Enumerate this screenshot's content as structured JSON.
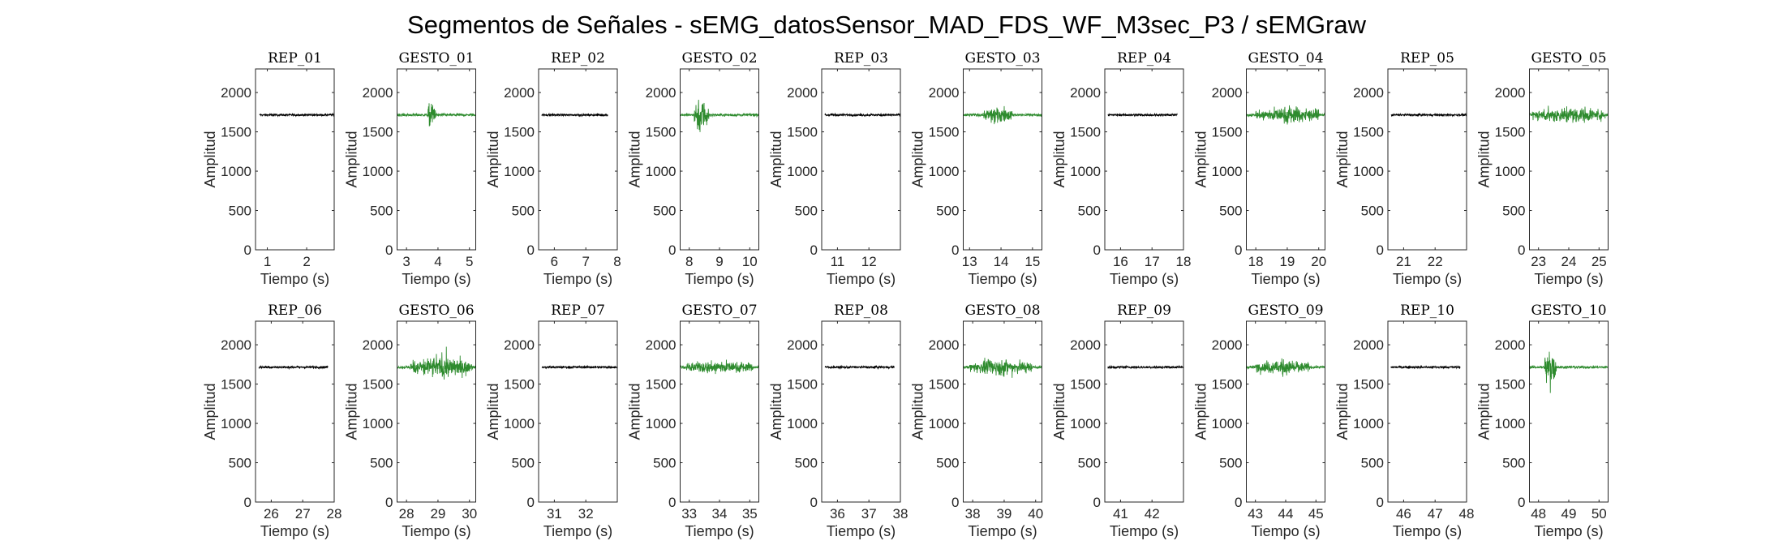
{
  "figure_title": "Segmentos de Señales - sEMG_datosSensor_MAD_FDS_WF_M3sec_P3 / sEMGraw",
  "colors": {
    "rep": "#000000",
    "gesto": "#2e8b2e",
    "axes": "#262626",
    "background": "#ffffff"
  },
  "chart_data": [
    {
      "type": "line",
      "title": "REP_01",
      "kind": "rep",
      "xlabel": "Tiempo (s)",
      "ylabel": "Amplitud",
      "xlim": [
        0.7,
        2.7
      ],
      "ylim": [
        0,
        2300
      ],
      "xticks": [
        1,
        2
      ],
      "yticks": [
        0,
        500,
        1000,
        1500,
        2000
      ],
      "series": [
        {
          "x_range": [
            0.8,
            2.7
          ],
          "baseline": 1715,
          "noise": 25,
          "bursts": []
        }
      ]
    },
    {
      "type": "line",
      "title": "GESTO_01",
      "kind": "gesto",
      "xlabel": "Tiempo (s)",
      "ylabel": "Amplitud",
      "xlim": [
        2.7,
        5.2
      ],
      "ylim": [
        0,
        2300
      ],
      "xticks": [
        3,
        4,
        5
      ],
      "yticks": [
        0,
        500,
        1000,
        1500,
        2000
      ],
      "series": [
        {
          "x_range": [
            2.7,
            5.2
          ],
          "baseline": 1715,
          "noise": 30,
          "bursts": [
            {
              "t": 3.8,
              "width": 0.25,
              "amp": 280
            }
          ]
        }
      ]
    },
    {
      "type": "line",
      "title": "REP_02",
      "kind": "rep",
      "xlabel": "Tiempo (s)",
      "ylabel": "Amplitud",
      "xlim": [
        5.5,
        8
      ],
      "ylim": [
        0,
        2300
      ],
      "xticks": [
        6,
        7,
        8
      ],
      "yticks": [
        0,
        500,
        1000,
        1500,
        2000
      ],
      "series": [
        {
          "x_range": [
            5.6,
            7.7
          ],
          "baseline": 1715,
          "noise": 25,
          "bursts": []
        }
      ]
    },
    {
      "type": "line",
      "title": "GESTO_02",
      "kind": "gesto",
      "xlabel": "Tiempo (s)",
      "ylabel": "Amplitud",
      "xlim": [
        7.7,
        10.3
      ],
      "ylim": [
        0,
        2300
      ],
      "xticks": [
        8,
        9,
        10
      ],
      "yticks": [
        0,
        500,
        1000,
        1500,
        2000
      ],
      "series": [
        {
          "x_range": [
            7.7,
            10.3
          ],
          "baseline": 1715,
          "noise": 30,
          "bursts": [
            {
              "t": 8.4,
              "width": 0.5,
              "amp": 380
            }
          ]
        }
      ]
    },
    {
      "type": "line",
      "title": "REP_03",
      "kind": "rep",
      "xlabel": "Tiempo (s)",
      "ylabel": "Amplitud",
      "xlim": [
        10.5,
        13
      ],
      "ylim": [
        0,
        2300
      ],
      "xticks": [
        11,
        12
      ],
      "yticks": [
        0,
        500,
        1000,
        1500,
        2000
      ],
      "series": [
        {
          "x_range": [
            10.6,
            13
          ],
          "baseline": 1715,
          "noise": 25,
          "bursts": []
        }
      ]
    },
    {
      "type": "line",
      "title": "GESTO_03",
      "kind": "gesto",
      "xlabel": "Tiempo (s)",
      "ylabel": "Amplitud",
      "xlim": [
        12.8,
        15.3
      ],
      "ylim": [
        0,
        2300
      ],
      "xticks": [
        13,
        14,
        15
      ],
      "yticks": [
        0,
        500,
        1000,
        1500,
        2000
      ],
      "series": [
        {
          "x_range": [
            12.8,
            15.3
          ],
          "baseline": 1715,
          "noise": 30,
          "bursts": [
            {
              "t": 13.9,
              "width": 0.9,
              "amp": 180
            }
          ]
        }
      ]
    },
    {
      "type": "line",
      "title": "REP_04",
      "kind": "rep",
      "xlabel": "Tiempo (s)",
      "ylabel": "Amplitud",
      "xlim": [
        15.5,
        18
      ],
      "ylim": [
        0,
        2300
      ],
      "xticks": [
        16,
        17,
        18
      ],
      "yticks": [
        0,
        500,
        1000,
        1500,
        2000
      ],
      "series": [
        {
          "x_range": [
            15.6,
            17.8
          ],
          "baseline": 1715,
          "noise": 25,
          "bursts": []
        }
      ]
    },
    {
      "type": "line",
      "title": "GESTO_04",
      "kind": "gesto",
      "xlabel": "Tiempo (s)",
      "ylabel": "Amplitud",
      "xlim": [
        17.7,
        20.2
      ],
      "ylim": [
        0,
        2300
      ],
      "xticks": [
        18,
        19,
        20
      ],
      "yticks": [
        0,
        500,
        1000,
        1500,
        2000
      ],
      "series": [
        {
          "x_range": [
            17.7,
            20.2
          ],
          "baseline": 1715,
          "noise": 30,
          "bursts": [
            {
              "t": 19,
              "width": 2,
              "amp": 170
            }
          ]
        }
      ]
    },
    {
      "type": "line",
      "title": "REP_05",
      "kind": "rep",
      "xlabel": "Tiempo (s)",
      "ylabel": "Amplitud",
      "xlim": [
        20.5,
        23
      ],
      "ylim": [
        0,
        2300
      ],
      "xticks": [
        21,
        22
      ],
      "yticks": [
        0,
        500,
        1000,
        1500,
        2000
      ],
      "series": [
        {
          "x_range": [
            20.6,
            23
          ],
          "baseline": 1715,
          "noise": 25,
          "bursts": []
        }
      ]
    },
    {
      "type": "line",
      "title": "GESTO_05",
      "kind": "gesto",
      "xlabel": "Tiempo (s)",
      "ylabel": "Amplitud",
      "xlim": [
        22.7,
        25.3
      ],
      "ylim": [
        0,
        2300
      ],
      "xticks": [
        23,
        24,
        25
      ],
      "yticks": [
        0,
        500,
        1000,
        1500,
        2000
      ],
      "series": [
        {
          "x_range": [
            22.7,
            25.3
          ],
          "baseline": 1715,
          "noise": 30,
          "bursts": [
            {
              "t": 24,
              "width": 2.4,
              "amp": 150
            }
          ]
        }
      ]
    },
    {
      "type": "line",
      "title": "REP_06",
      "kind": "rep",
      "xlabel": "Tiempo (s)",
      "ylabel": "Amplitud",
      "xlim": [
        25.5,
        28
      ],
      "ylim": [
        0,
        2300
      ],
      "xticks": [
        26,
        27,
        28
      ],
      "yticks": [
        0,
        500,
        1000,
        1500,
        2000
      ],
      "series": [
        {
          "x_range": [
            25.6,
            27.8
          ],
          "baseline": 1715,
          "noise": 25,
          "bursts": []
        }
      ]
    },
    {
      "type": "line",
      "title": "GESTO_06",
      "kind": "gesto",
      "xlabel": "Tiempo (s)",
      "ylabel": "Amplitud",
      "xlim": [
        27.7,
        30.2
      ],
      "ylim": [
        0,
        2300
      ],
      "xticks": [
        28,
        29,
        30
      ],
      "yticks": [
        0,
        500,
        1000,
        1500,
        2000
      ],
      "series": [
        {
          "x_range": [
            27.7,
            30.2
          ],
          "baseline": 1715,
          "noise": 30,
          "bursts": [
            {
              "t": 29.1,
              "width": 2,
              "amp": 230
            }
          ]
        }
      ]
    },
    {
      "type": "line",
      "title": "REP_07",
      "kind": "rep",
      "xlabel": "Tiempo (s)",
      "ylabel": "Amplitud",
      "xlim": [
        30.5,
        33
      ],
      "ylim": [
        0,
        2300
      ],
      "xticks": [
        31,
        32
      ],
      "yticks": [
        0,
        500,
        1000,
        1500,
        2000
      ],
      "series": [
        {
          "x_range": [
            30.6,
            33
          ],
          "baseline": 1715,
          "noise": 25,
          "bursts": []
        }
      ]
    },
    {
      "type": "line",
      "title": "GESTO_07",
      "kind": "gesto",
      "xlabel": "Tiempo (s)",
      "ylabel": "Amplitud",
      "xlim": [
        32.7,
        35.3
      ],
      "ylim": [
        0,
        2300
      ],
      "xticks": [
        33,
        34,
        35
      ],
      "yticks": [
        0,
        500,
        1000,
        1500,
        2000
      ],
      "series": [
        {
          "x_range": [
            32.7,
            35.3
          ],
          "baseline": 1715,
          "noise": 30,
          "bursts": [
            {
              "t": 34,
              "width": 2.2,
              "amp": 130
            }
          ]
        }
      ]
    },
    {
      "type": "line",
      "title": "REP_08",
      "kind": "rep",
      "xlabel": "Tiempo (s)",
      "ylabel": "Amplitud",
      "xlim": [
        35.5,
        38
      ],
      "ylim": [
        0,
        2300
      ],
      "xticks": [
        36,
        37,
        38
      ],
      "yticks": [
        0,
        500,
        1000,
        1500,
        2000
      ],
      "series": [
        {
          "x_range": [
            35.6,
            37.8
          ],
          "baseline": 1715,
          "noise": 25,
          "bursts": []
        }
      ]
    },
    {
      "type": "line",
      "title": "GESTO_08",
      "kind": "gesto",
      "xlabel": "Tiempo (s)",
      "ylabel": "Amplitud",
      "xlim": [
        37.7,
        40.2
      ],
      "ylim": [
        0,
        2300
      ],
      "xticks": [
        38,
        39,
        40
      ],
      "yticks": [
        0,
        500,
        1000,
        1500,
        2000
      ],
      "series": [
        {
          "x_range": [
            37.7,
            40.2
          ],
          "baseline": 1715,
          "noise": 30,
          "bursts": [
            {
              "t": 38.9,
              "width": 2,
              "amp": 170
            }
          ]
        }
      ]
    },
    {
      "type": "line",
      "title": "REP_09",
      "kind": "rep",
      "xlabel": "Tiempo (s)",
      "ylabel": "Amplitud",
      "xlim": [
        40.5,
        43
      ],
      "ylim": [
        0,
        2300
      ],
      "xticks": [
        41,
        42
      ],
      "yticks": [
        0,
        500,
        1000,
        1500,
        2000
      ],
      "series": [
        {
          "x_range": [
            40.6,
            43
          ],
          "baseline": 1715,
          "noise": 25,
          "bursts": []
        }
      ]
    },
    {
      "type": "line",
      "title": "GESTO_09",
      "kind": "gesto",
      "xlabel": "Tiempo (s)",
      "ylabel": "Amplitud",
      "xlim": [
        42.7,
        45.3
      ],
      "ylim": [
        0,
        2300
      ],
      "xticks": [
        43,
        44,
        45
      ],
      "yticks": [
        0,
        500,
        1000,
        1500,
        2000
      ],
      "series": [
        {
          "x_range": [
            42.7,
            45.3
          ],
          "baseline": 1715,
          "noise": 30,
          "bursts": [
            {
              "t": 43.9,
              "width": 1.8,
              "amp": 150
            }
          ]
        }
      ]
    },
    {
      "type": "line",
      "title": "REP_10",
      "kind": "rep",
      "xlabel": "Tiempo (s)",
      "ylabel": "Amplitud",
      "xlim": [
        45.5,
        48
      ],
      "ylim": [
        0,
        2300
      ],
      "xticks": [
        46,
        47,
        48
      ],
      "yticks": [
        0,
        500,
        1000,
        1500,
        2000
      ],
      "series": [
        {
          "x_range": [
            45.6,
            47.8
          ],
          "baseline": 1715,
          "noise": 25,
          "bursts": []
        }
      ]
    },
    {
      "type": "line",
      "title": "GESTO_10",
      "kind": "gesto",
      "xlabel": "Tiempo (s)",
      "ylabel": "Amplitud",
      "xlim": [
        47.7,
        50.3
      ],
      "ylim": [
        0,
        2300
      ],
      "xticks": [
        48,
        49,
        50
      ],
      "yticks": [
        0,
        500,
        1000,
        1500,
        2000
      ],
      "series": [
        {
          "x_range": [
            47.7,
            50.3
          ],
          "baseline": 1715,
          "noise": 30,
          "bursts": [
            {
              "t": 48.4,
              "width": 0.4,
              "amp": 480
            }
          ]
        }
      ]
    }
  ]
}
